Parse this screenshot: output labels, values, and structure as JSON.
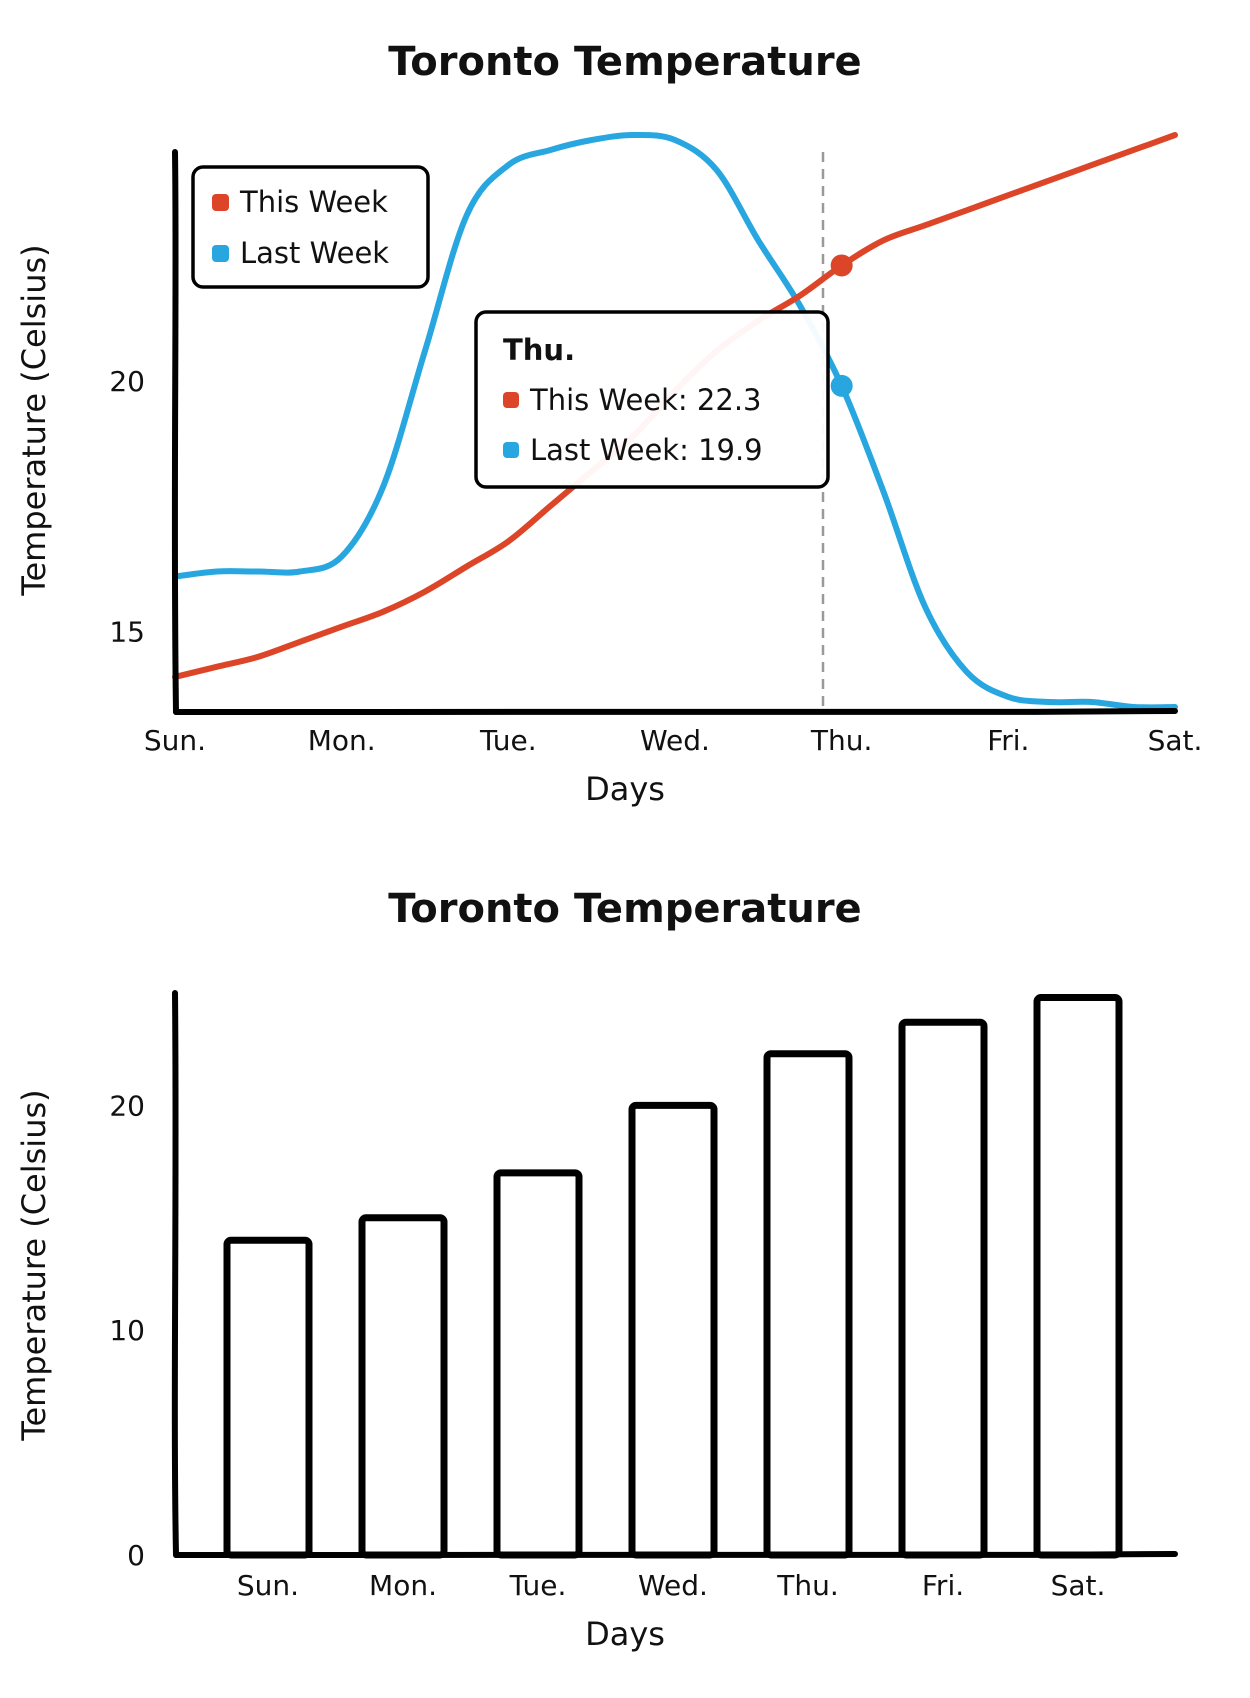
{
  "chart_data": [
    {
      "type": "line",
      "title": "Toronto Temperature",
      "xlabel": "Days",
      "ylabel": "Temperature (Celsius)",
      "categories": [
        "Sun.",
        "Mon.",
        "Tue.",
        "Wed.",
        "Thu.",
        "Fri.",
        "Sat."
      ],
      "yticks": [
        15,
        20
      ],
      "ylim": [
        13.4,
        25
      ],
      "legend_position": "top-left",
      "series": [
        {
          "name": "This Week",
          "color": "#dd4528",
          "x": [
            0,
            0.25,
            0.5,
            0.75,
            1,
            1.25,
            1.5,
            1.75,
            2,
            2.25,
            2.5,
            2.75,
            3,
            3.25,
            3.5,
            3.75,
            4,
            4.25,
            4.5,
            4.75,
            5,
            5.25,
            5.5,
            5.75,
            6
          ],
          "values": [
            14.1,
            14.3,
            14.5,
            14.8,
            15.1,
            15.4,
            15.8,
            16.3,
            16.8,
            17.5,
            18.2,
            18.9,
            19.8,
            20.6,
            21.2,
            21.7,
            22.3,
            22.8,
            23.1,
            23.4,
            23.7,
            24.0,
            24.3,
            24.6,
            24.9
          ]
        },
        {
          "name": "Last Week",
          "color": "#28a6df",
          "x": [
            0,
            0.25,
            0.5,
            0.75,
            1,
            1.25,
            1.5,
            1.75,
            2,
            2.25,
            2.5,
            2.75,
            3,
            3.25,
            3.5,
            3.75,
            4,
            4.25,
            4.5,
            4.75,
            5,
            5.25,
            5.5,
            5.75,
            6
          ],
          "values": [
            16.1,
            16.2,
            16.2,
            16.2,
            16.5,
            17.9,
            20.6,
            23.3,
            24.3,
            24.6,
            24.8,
            24.9,
            24.8,
            24.2,
            22.8,
            21.5,
            19.9,
            17.8,
            15.5,
            14.2,
            13.7,
            13.6,
            13.6,
            13.5,
            13.5
          ]
        }
      ],
      "tooltip": {
        "title": "Thu.",
        "rows": [
          "This Week: 22.3",
          "Last Week: 19.9"
        ],
        "category_index": 4,
        "values": [
          22.3,
          19.9
        ]
      }
    },
    {
      "type": "bar",
      "title": "Toronto Temperature",
      "xlabel": "Days",
      "ylabel": "Temperature (Celsius)",
      "categories": [
        "Sun.",
        "Mon.",
        "Tue.",
        "Wed.",
        "Thu.",
        "Fri.",
        "Sat."
      ],
      "yticks": [
        0,
        10,
        20
      ],
      "ylim": [
        0,
        25
      ],
      "values": [
        14,
        15,
        17,
        20,
        22.3,
        23.7,
        24.8
      ]
    }
  ]
}
